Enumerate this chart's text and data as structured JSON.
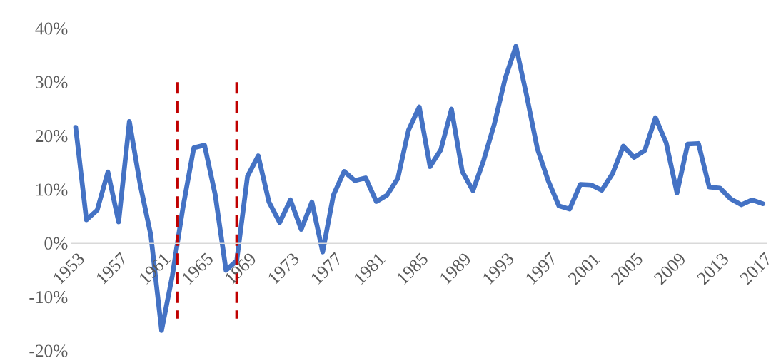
{
  "chart_data": {
    "type": "line",
    "categories": [
      "1953",
      null,
      null,
      null,
      "1957",
      null,
      null,
      null,
      "1961",
      null,
      null,
      null,
      "1965",
      null,
      null,
      null,
      "1969",
      null,
      null,
      null,
      "1973",
      null,
      null,
      null,
      "1977",
      null,
      null,
      null,
      "1981",
      null,
      null,
      null,
      "1985",
      null,
      null,
      null,
      "1989",
      null,
      null,
      null,
      "1993",
      null,
      null,
      null,
      "1997",
      null,
      null,
      null,
      "2001",
      null,
      null,
      null,
      "2005",
      null,
      null,
      null,
      "2009",
      null,
      null,
      null,
      "2013",
      null,
      null,
      null,
      "2017"
    ],
    "series": [
      {
        "color": "#4472c4",
        "values": [
          21.6,
          4.4,
          6.2,
          13.3,
          4.0,
          22.7,
          11,
          1.5,
          -16.2,
          -6,
          6.8,
          17.8,
          18.3,
          9.0,
          -5.0,
          -3.2,
          12.5,
          16.3,
          7.7,
          3.9,
          8.1,
          2.6,
          7.7,
          -1.6,
          9.0,
          13.4,
          11.7,
          12.2,
          7.8,
          9.0,
          12.1,
          21.1,
          25.4,
          14.3,
          17.4,
          25.0,
          13.4,
          9.8,
          15.5,
          22.3,
          30.7,
          36.7,
          27.5,
          17.6,
          11.7,
          7.0,
          6.4,
          11.0,
          10.9,
          9.9,
          13.0,
          18.1,
          16.0,
          17.3,
          23.4,
          18.7,
          9.4,
          18.5,
          18.6,
          10.5,
          10.3,
          8.3,
          7.2,
          8.1,
          7.4
        ]
      }
    ],
    "ylim": [
      -20,
      40
    ],
    "yticks": [
      {
        "value": -20,
        "label": "-20%"
      },
      {
        "value": -10,
        "label": "-10%"
      },
      {
        "value": 0,
        "label": "0%"
      },
      {
        "value": 10,
        "label": "10%"
      },
      {
        "value": 20,
        "label": "20%"
      },
      {
        "value": 30,
        "label": "30%"
      },
      {
        "value": 40,
        "label": "40%"
      }
    ],
    "grid": false,
    "marker": "none",
    "line_style": "solid"
  }
}
